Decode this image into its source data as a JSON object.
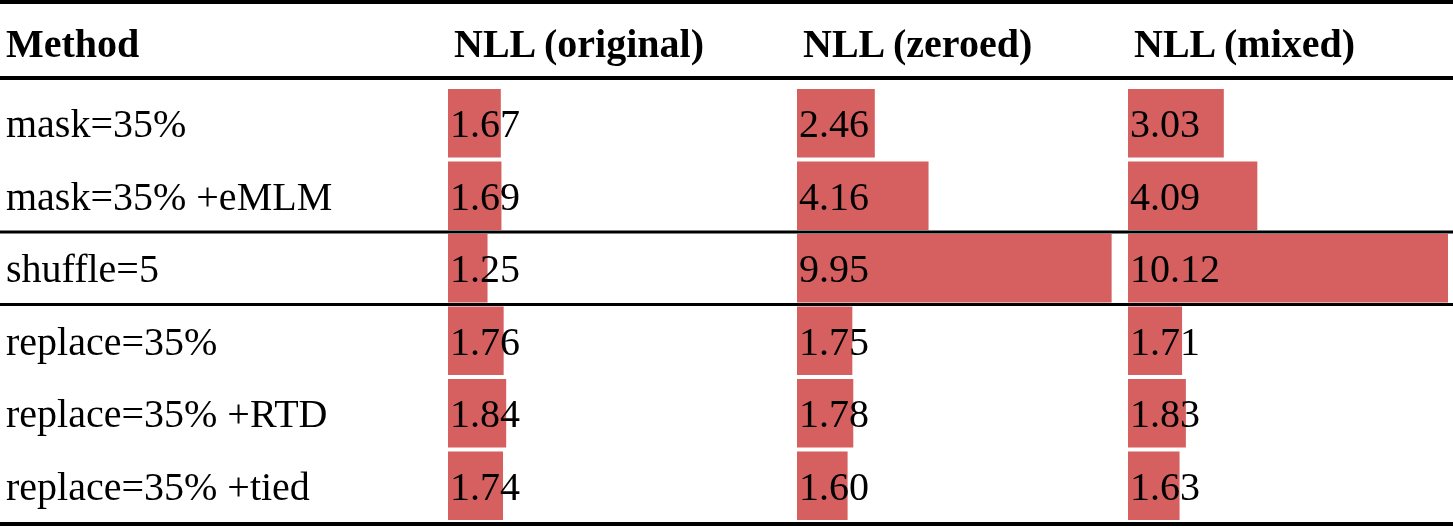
{
  "chart_data": [
    {
      "type": "bar",
      "orientation": "horizontal",
      "title": "NLL (original)",
      "ylabel": "Method",
      "categories": [
        "mask=35%",
        "mask=35% +eMLM",
        "shuffle=5",
        "replace=35%",
        "replace=35% +RTD",
        "replace=35% +tied"
      ],
      "values": [
        1.67,
        1.69,
        1.25,
        1.76,
        1.84,
        1.74
      ],
      "value_labels": [
        "1.67",
        "1.69",
        "1.25",
        "1.76",
        "1.84",
        "1.74"
      ],
      "color": "#d65f5f",
      "tick_labels": "y"
    },
    {
      "type": "bar",
      "orientation": "horizontal",
      "title": "NLL (zeroed)",
      "values": [
        2.46,
        4.16,
        9.95,
        1.75,
        1.78,
        1.6
      ],
      "value_labels": [
        "2.46",
        "4.16",
        "9.95",
        "1.75",
        "1.78",
        "1.60"
      ],
      "color": "#d65f5f",
      "tick_labels": false
    },
    {
      "type": "bar",
      "orientation": "horizontal",
      "title": "NLL (mixed)",
      "values": [
        3.03,
        4.09,
        10.12,
        1.71,
        1.83,
        1.63
      ],
      "value_labels": [
        "3.03",
        "4.09",
        "10.12",
        "1.71",
        "1.83",
        "1.63"
      ],
      "color": "#d65f5f",
      "tick_labels": false
    }
  ]
}
